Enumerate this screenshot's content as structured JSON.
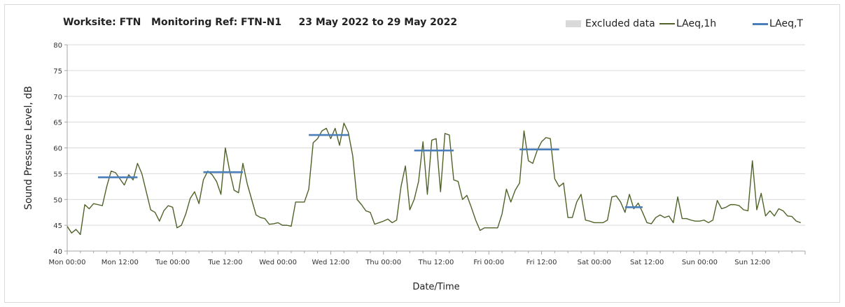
{
  "chart_data": {
    "type": "line",
    "title": "Worksite: FTN   Monitoring Ref: FTN-N1     23 May 2022 to 29 May 2022",
    "xlabel": "Date/Time",
    "ylabel": "Sound Pressure Level, dB",
    "ylim": [
      40,
      80
    ],
    "yticks": [
      40,
      45,
      50,
      55,
      60,
      65,
      70,
      75,
      80
    ],
    "xlim_hours": [
      0,
      168
    ],
    "xtick_hours": [
      0,
      12,
      24,
      36,
      48,
      60,
      72,
      84,
      96,
      108,
      120,
      132,
      144,
      156
    ],
    "xtick_labels": [
      "Mon 00:00",
      "Mon 12:00",
      "Tue 00:00",
      "Tue 12:00",
      "Wed 00:00",
      "Wed 12:00",
      "Thu 00:00",
      "Thu 12:00",
      "Fri 00:00",
      "Fri 12:00",
      "Sat 00:00",
      "Sat 12:00",
      "Sun 00:00",
      "Sun 12:00"
    ],
    "grid": true,
    "legend_placement": "top-right",
    "legend": [
      {
        "label": "Excluded data",
        "kind": "area",
        "color": "#d9d9d9"
      },
      {
        "label": "LAeq,1h",
        "kind": "line",
        "color": "#4f6228"
      },
      {
        "label": "LAeq,T",
        "kind": "line",
        "color": "#4a7ebb"
      }
    ],
    "series": [
      {
        "name": "LAeq,1h",
        "color": "#4f6228",
        "values": [
          44.8,
          43.5,
          44.2,
          43.2,
          49.0,
          48.2,
          49.2,
          49.0,
          48.8,
          52.5,
          55.5,
          55.2,
          54.0,
          52.8,
          54.8,
          53.8,
          57.0,
          55.0,
          51.5,
          48.0,
          47.5,
          45.8,
          47.8,
          48.8,
          48.5,
          44.5,
          45.0,
          47.2,
          50.2,
          51.5,
          49.2,
          53.8,
          55.5,
          54.8,
          53.5,
          51.0,
          60.0,
          55.5,
          51.8,
          51.3,
          57.0,
          53.0,
          50.0,
          47.0,
          46.5,
          46.3,
          45.2,
          45.3,
          45.5,
          45.0,
          45.0,
          44.8,
          49.5,
          49.5,
          49.5,
          52.0,
          61.0,
          61.8,
          63.3,
          63.8,
          61.8,
          63.8,
          60.5,
          64.8,
          63.0,
          58.5,
          50.0,
          49.0,
          47.8,
          47.5,
          45.2,
          45.5,
          45.8,
          46.2,
          45.5,
          46.0,
          52.5,
          56.5,
          48.0,
          50.0,
          53.5,
          61.2,
          51.0,
          61.5,
          61.8,
          51.5,
          62.8,
          62.5,
          53.8,
          53.5,
          50.0,
          50.8,
          48.5,
          46.0,
          44.0,
          44.5,
          44.5,
          44.5,
          44.5,
          47.2,
          52.0,
          49.5,
          51.8,
          53.2,
          63.3,
          57.5,
          57.0,
          59.5,
          61.2,
          62.0,
          61.8,
          54.0,
          52.5,
          53.2,
          46.5,
          46.5,
          49.5,
          51.0,
          46.0,
          45.8,
          45.5,
          45.5,
          45.5,
          46.0,
          50.5,
          50.7,
          49.5,
          47.5,
          51.0,
          48.2,
          49.3,
          47.5,
          45.5,
          45.3,
          46.5,
          47.0,
          46.5,
          46.8,
          45.5,
          50.5,
          46.3,
          46.3,
          46.0,
          45.8,
          45.8,
          46.0,
          45.5,
          46.0,
          49.8,
          48.2,
          48.5,
          49.0,
          49.0,
          48.8,
          48.0,
          47.8,
          57.5,
          48.0,
          51.2,
          46.8,
          47.8,
          46.8,
          48.2,
          47.8,
          46.8,
          46.7,
          45.8,
          45.5
        ]
      },
      {
        "name": "LAeq,T",
        "color": "#4a7ebb",
        "segments": [
          {
            "x0": 7,
            "x1": 16,
            "y": 54.3
          },
          {
            "x0": 31,
            "x1": 40,
            "y": 55.3
          },
          {
            "x0": 55,
            "x1": 64,
            "y": 62.5
          },
          {
            "x0": 79,
            "x1": 88,
            "y": 59.5
          },
          {
            "x0": 103,
            "x1": 112,
            "y": 59.7
          },
          {
            "x0": 127,
            "x1": 131,
            "y": 48.5
          }
        ]
      }
    ]
  }
}
